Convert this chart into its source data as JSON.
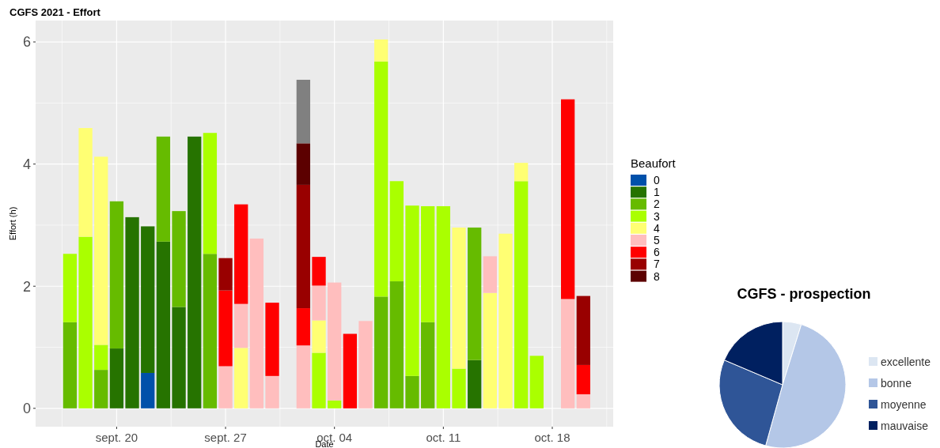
{
  "chart_data": [
    {
      "type": "bar",
      "stacked": true,
      "title": "CGFS 2021 - Effort",
      "xlabel": "Date",
      "ylabel": "Effort (h)",
      "legend_title": "Beaufort",
      "legend": "right",
      "grid": true,
      "x": [
        "2021-09-17",
        "2021-09-18",
        "2021-09-19",
        "2021-09-20",
        "2021-09-21",
        "2021-09-22",
        "2021-09-23",
        "2021-09-24",
        "2021-09-25",
        "2021-09-26",
        "2021-09-27",
        "2021-09-28",
        "2021-09-29",
        "2021-09-30",
        "2021-10-02",
        "2021-10-03",
        "2021-10-04",
        "2021-10-05",
        "2021-10-06",
        "2021-10-07",
        "2021-10-08",
        "2021-10-09",
        "2021-10-10",
        "2021-10-11",
        "2021-10-12",
        "2021-10-13",
        "2021-10-14",
        "2021-10-15",
        "2021-10-16",
        "2021-10-17",
        "2021-10-19",
        "2021-10-20"
      ],
      "xlim": [
        "2021-09-14T19:00",
        "2021-10-21T22:00"
      ],
      "xticks": [
        {
          "value": "2021-09-20",
          "label": "sept. 20"
        },
        {
          "value": "2021-09-27",
          "label": "sept. 27"
        },
        {
          "value": "2021-10-04",
          "label": "oct. 04"
        },
        {
          "value": "2021-10-11",
          "label": "oct. 11"
        },
        {
          "value": "2021-10-18",
          "label": "oct. 18"
        }
      ],
      "ylim": [
        -0.3,
        6.35
      ],
      "yticks": [
        0,
        2,
        4,
        6
      ],
      "series": [
        {
          "name": "0",
          "color": "#0050aa",
          "values": [
            null,
            null,
            null,
            null,
            null,
            0.58,
            null,
            null,
            null,
            null,
            null,
            null,
            null,
            null,
            null,
            null,
            null,
            null,
            null,
            null,
            null,
            null,
            null,
            null,
            null,
            null,
            null,
            null,
            null,
            null,
            null,
            null
          ]
        },
        {
          "name": "1",
          "color": "#267300",
          "values": [
            null,
            null,
            null,
            0.98,
            3.13,
            2.4,
            2.73,
            1.66,
            4.45,
            null,
            null,
            null,
            null,
            null,
            null,
            null,
            null,
            null,
            null,
            null,
            null,
            null,
            null,
            null,
            null,
            0.79,
            null,
            null,
            null,
            null,
            null,
            null
          ]
        },
        {
          "name": "2",
          "color": "#66bb00",
          "values": [
            1.41,
            null,
            0.63,
            2.41,
            null,
            null,
            1.72,
            1.57,
            null,
            2.53,
            null,
            null,
            null,
            null,
            null,
            null,
            null,
            null,
            null,
            1.83,
            2.08,
            0.53,
            1.41,
            null,
            null,
            2.17,
            null,
            null,
            null,
            null,
            null,
            null
          ]
        },
        {
          "name": "3",
          "color": "#aaff00",
          "values": [
            1.12,
            2.81,
            0.41,
            null,
            null,
            null,
            null,
            null,
            null,
            1.98,
            null,
            null,
            null,
            null,
            null,
            0.91,
            0.13,
            null,
            null,
            3.85,
            1.64,
            2.79,
            1.9,
            3.31,
            0.65,
            null,
            null,
            null,
            3.72,
            0.86,
            null,
            null
          ]
        },
        {
          "name": "4",
          "color": "#ffff73",
          "values": [
            null,
            1.78,
            3.08,
            null,
            null,
            null,
            null,
            null,
            null,
            null,
            null,
            0.99,
            null,
            null,
            null,
            0.53,
            null,
            null,
            null,
            0.36,
            null,
            null,
            null,
            null,
            2.31,
            null,
            1.89,
            2.86,
            0.3,
            null,
            null,
            null
          ]
        },
        {
          "name": "5",
          "color": "#ffbebe",
          "values": [
            null,
            null,
            null,
            null,
            null,
            null,
            null,
            null,
            null,
            null,
            0.69,
            0.72,
            2.78,
            0.53,
            1.03,
            0.57,
            1.93,
            null,
            1.43,
            null,
            null,
            null,
            null,
            null,
            null,
            null,
            0.6,
            null,
            null,
            null,
            1.79,
            0.23
          ]
        },
        {
          "name": "6",
          "color": "#ff0000",
          "values": [
            null,
            null,
            null,
            null,
            null,
            null,
            null,
            null,
            null,
            null,
            1.24,
            1.63,
            null,
            1.2,
            0.61,
            0.47,
            null,
            1.22,
            null,
            null,
            null,
            null,
            null,
            null,
            null,
            null,
            null,
            null,
            null,
            null,
            3.27,
            0.48
          ]
        },
        {
          "name": "7",
          "color": "#990000",
          "values": [
            null,
            null,
            null,
            null,
            null,
            null,
            null,
            null,
            null,
            null,
            0.53,
            null,
            null,
            null,
            2.02,
            null,
            null,
            null,
            null,
            null,
            null,
            null,
            null,
            null,
            null,
            null,
            null,
            null,
            null,
            null,
            null,
            1.13
          ]
        },
        {
          "name": "8",
          "color": "#5c0000",
          "values": [
            null,
            null,
            null,
            null,
            null,
            null,
            null,
            null,
            null,
            null,
            null,
            null,
            null,
            null,
            0.68,
            null,
            null,
            null,
            null,
            null,
            null,
            null,
            null,
            null,
            null,
            null,
            null,
            null,
            null,
            null,
            null,
            null
          ]
        },
        {
          "color": "#808080",
          "values": [
            null,
            null,
            null,
            null,
            null,
            null,
            null,
            null,
            null,
            null,
            null,
            null,
            null,
            null,
            1.04,
            null,
            null,
            null,
            null,
            null,
            null,
            null,
            null,
            null,
            null,
            null,
            null,
            null,
            null,
            null,
            null,
            null
          ]
        }
      ]
    },
    {
      "type": "pie",
      "title": "CGFS - prospection",
      "legend": "right",
      "categories": [
        "excellente",
        "bonne",
        "moyenne",
        "mauvaise"
      ],
      "values": [
        4.8,
        49.5,
        27.1,
        18.6
      ],
      "colors": [
        "#dce6f2",
        "#b4c7e7",
        "#2f5597",
        "#002060"
      ]
    }
  ]
}
